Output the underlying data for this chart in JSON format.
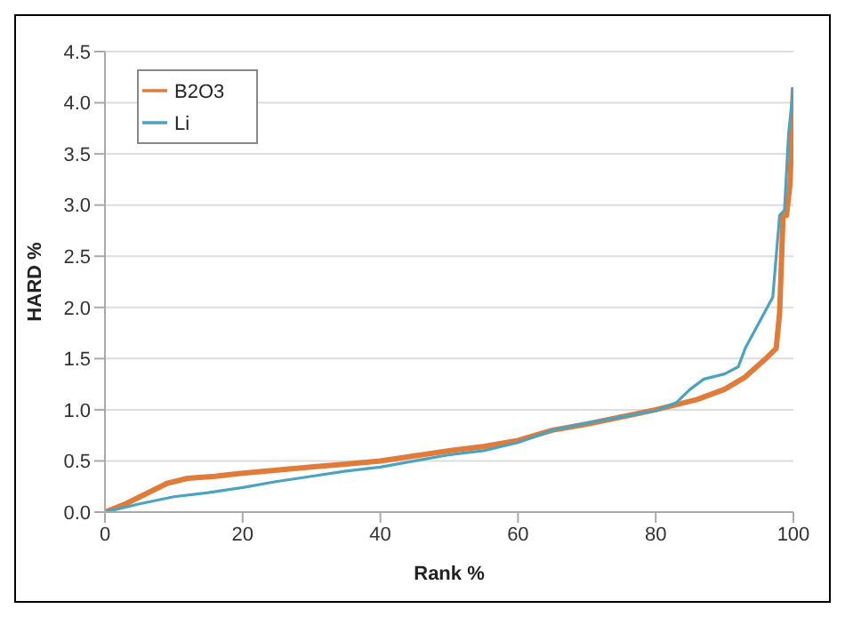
{
  "chart_data": {
    "type": "line",
    "xlabel": "Rank %",
    "ylabel": "HARD %",
    "xlim": [
      0,
      100
    ],
    "xticks": [
      0,
      20,
      40,
      60,
      80,
      100
    ],
    "ylim": [
      0,
      4.5
    ],
    "yticks": [
      {
        "value": 0,
        "label": "0.0"
      },
      {
        "value": 0.5,
        "label": "0.5"
      },
      {
        "value": 1,
        "label": "1.0"
      },
      {
        "value": 1.5,
        "label": "1.5"
      },
      {
        "value": 2,
        "label": "2.0"
      },
      {
        "value": 2.5,
        "label": "2.5"
      },
      {
        "value": 3,
        "label": "3.0"
      },
      {
        "value": 3.5,
        "label": "3.5"
      },
      {
        "value": 4,
        "label": "4.0"
      },
      {
        "value": 4.5,
        "label": "4.5"
      }
    ],
    "grid": "y",
    "legend": "top left",
    "marker": "none",
    "line_style": "solid",
    "series": [
      {
        "name": "B2O3",
        "color": "#e07b39",
        "x": [
          0,
          3,
          6,
          9,
          12,
          16,
          20,
          25,
          30,
          35,
          40,
          45,
          50,
          55,
          60,
          65,
          70,
          75,
          80,
          83,
          86,
          90,
          93,
          96,
          97.5,
          98,
          98.5,
          99,
          99.5,
          100
        ],
        "values": [
          0,
          0.08,
          0.18,
          0.28,
          0.33,
          0.35,
          0.38,
          0.41,
          0.44,
          0.47,
          0.5,
          0.55,
          0.6,
          0.64,
          0.7,
          0.8,
          0.86,
          0.93,
          1.0,
          1.05,
          1.1,
          1.2,
          1.32,
          1.5,
          1.6,
          1.95,
          2.9,
          2.9,
          3.2,
          4.15
        ]
      },
      {
        "name": "Li",
        "color": "#4aa3c0",
        "x": [
          0,
          5,
          10,
          15,
          20,
          25,
          30,
          35,
          40,
          45,
          50,
          55,
          60,
          65,
          70,
          75,
          80,
          83,
          85,
          87,
          90,
          92,
          93,
          95,
          97,
          98,
          98.7,
          99.3,
          100
        ],
        "values": [
          0,
          0.08,
          0.15,
          0.19,
          0.24,
          0.3,
          0.35,
          0.4,
          0.44,
          0.5,
          0.56,
          0.6,
          0.68,
          0.8,
          0.87,
          0.93,
          0.99,
          1.07,
          1.2,
          1.3,
          1.35,
          1.42,
          1.6,
          1.85,
          2.1,
          2.9,
          2.95,
          3.7,
          4.15
        ]
      }
    ]
  }
}
